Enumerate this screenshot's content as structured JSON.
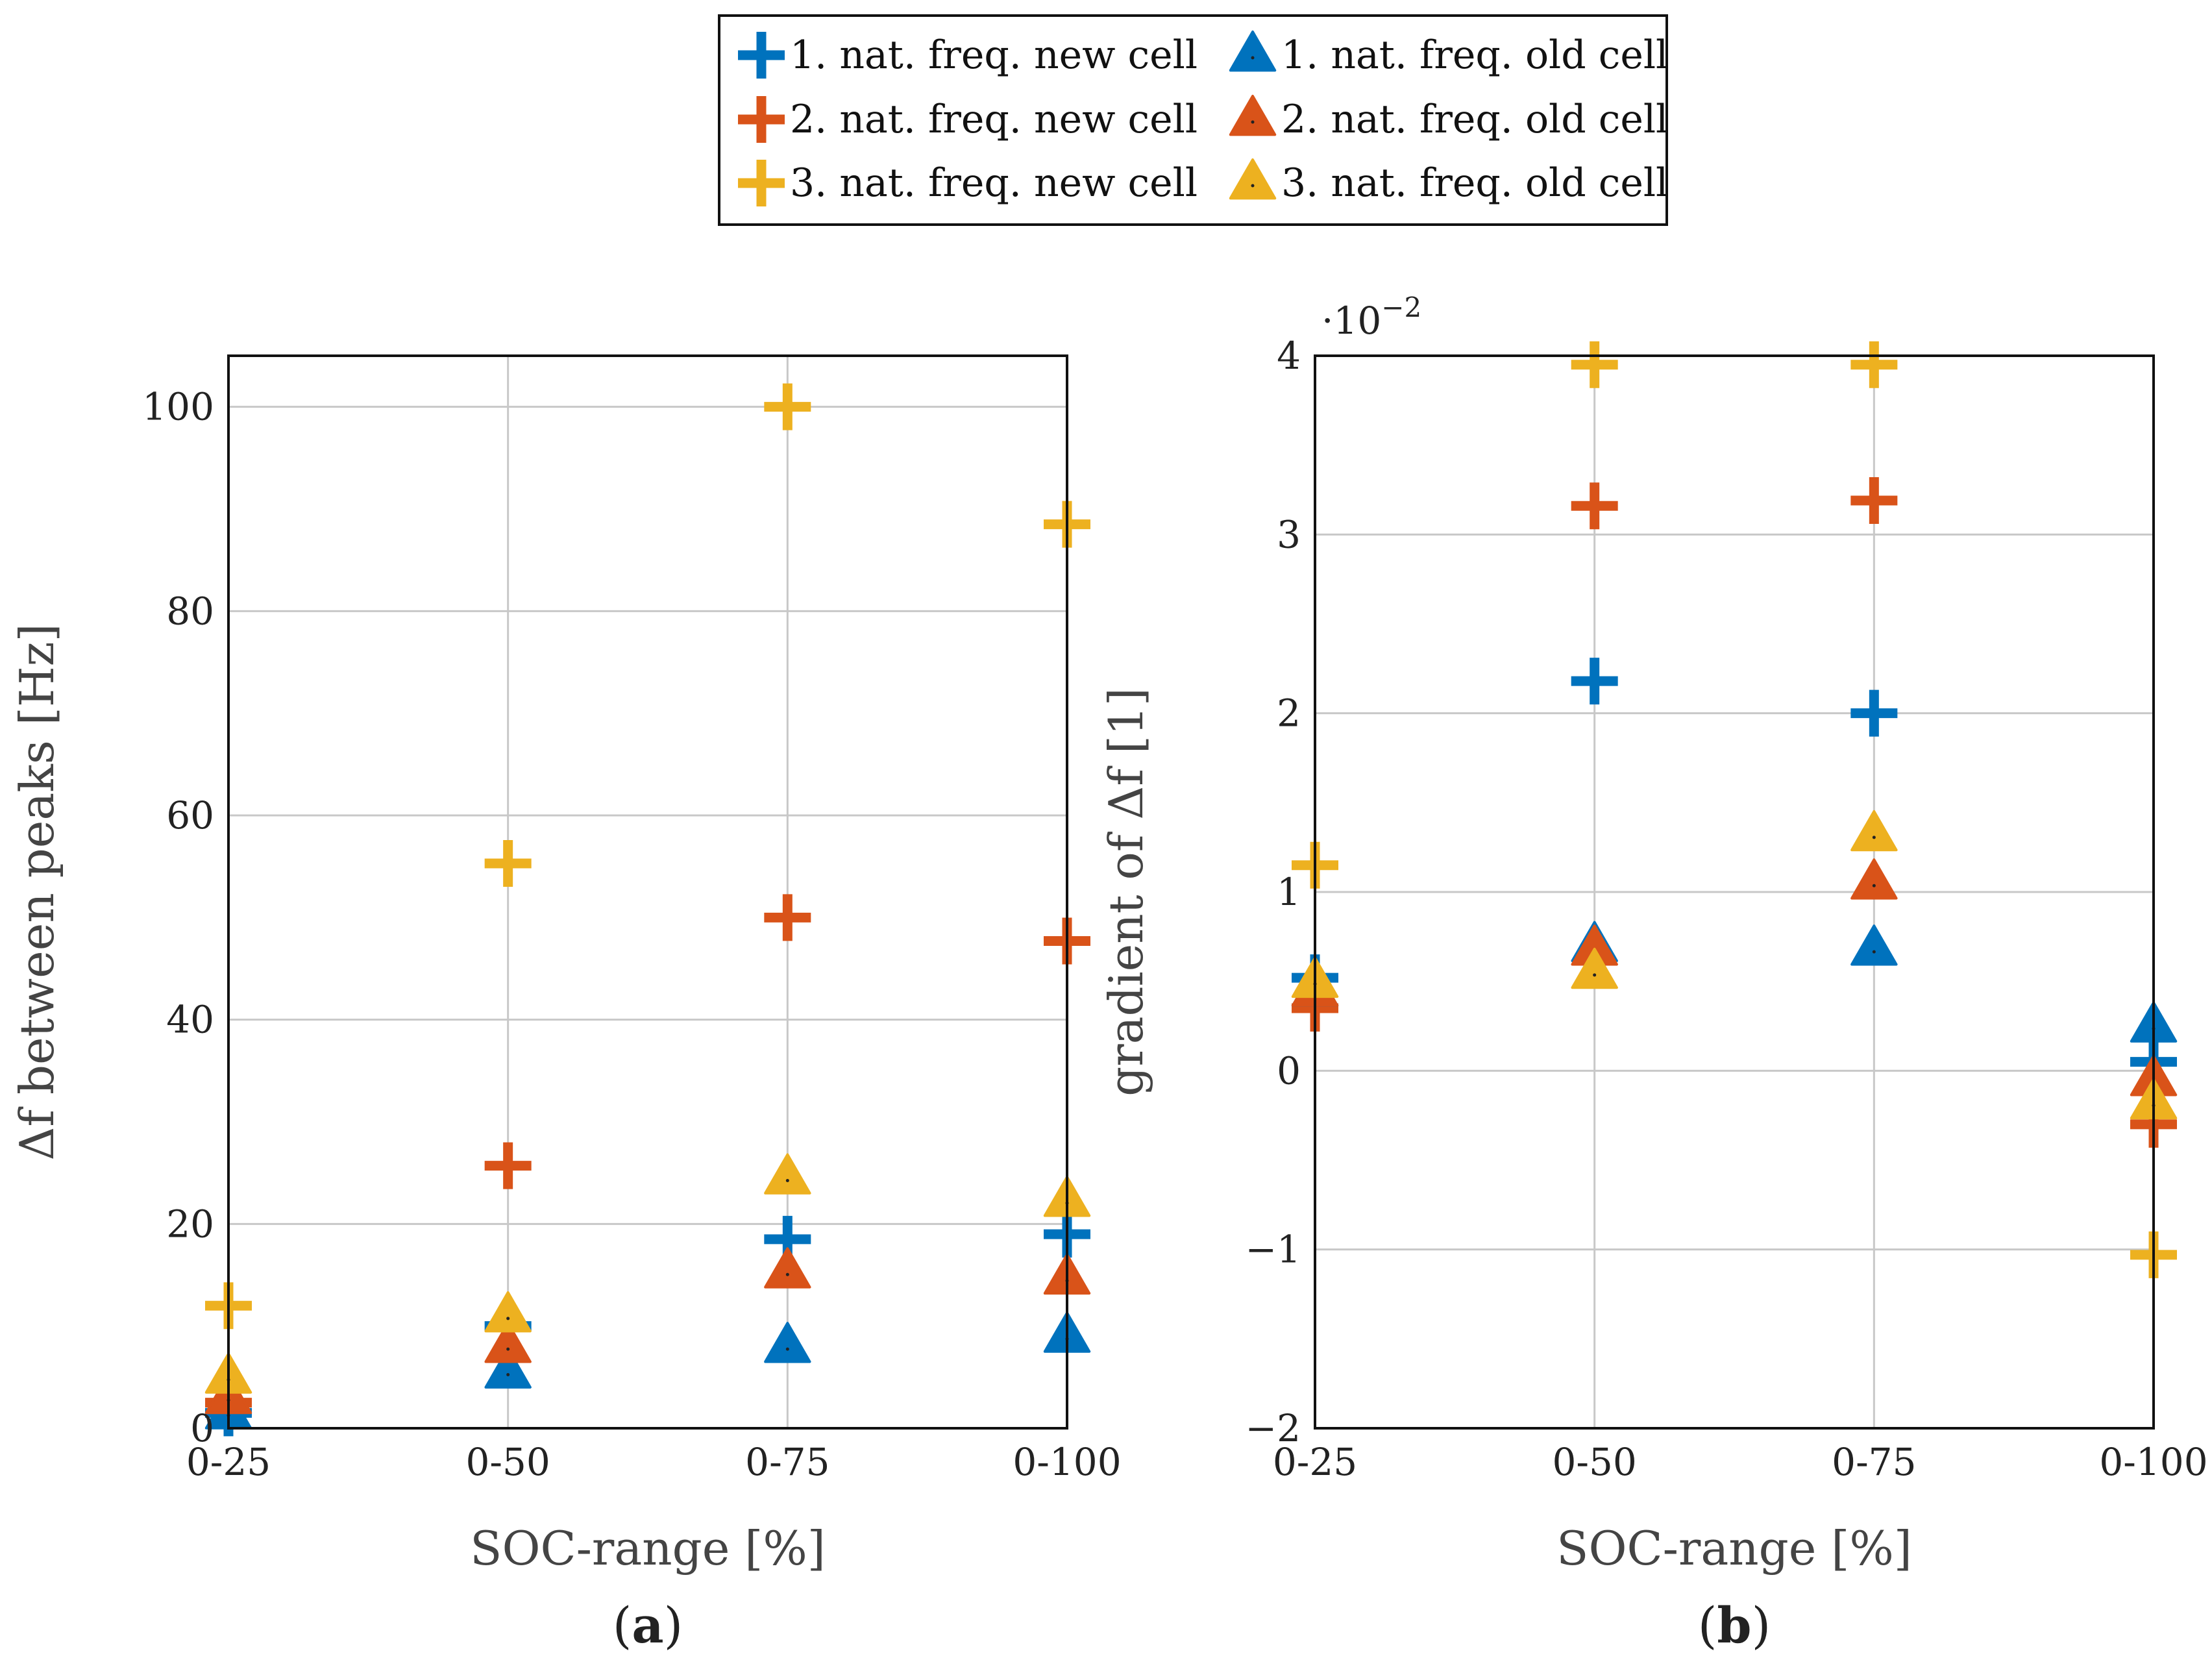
{
  "legend": {
    "columns": [
      [
        {
          "label": "1. nat. freq. new cell",
          "marker": "plus",
          "color": "#0072BD"
        },
        {
          "label": "2. nat. freq. new cell",
          "marker": "plus",
          "color": "#D95319"
        },
        {
          "label": "3. nat. freq. new cell",
          "marker": "plus",
          "color": "#EDB120"
        }
      ],
      [
        {
          "label": "1. nat. freq. old cell",
          "marker": "triangle",
          "color": "#0072BD"
        },
        {
          "label": "2. nat. freq. old cell",
          "marker": "triangle",
          "color": "#D95319"
        },
        {
          "label": "3. nat. freq. old cell",
          "marker": "triangle",
          "color": "#EDB120"
        }
      ]
    ]
  },
  "chart_data": [
    {
      "type": "scatter",
      "caption_letter": "a",
      "categories": [
        "0-25",
        "0-50",
        "0-75",
        "0-100"
      ],
      "xlabel": "SOC-range [%]",
      "ylabel": "Δf between peaks [Hz]",
      "ylim": [
        0,
        105
      ],
      "yticks": [
        0,
        20,
        40,
        60,
        80,
        100
      ],
      "ytick_labels": [
        "0",
        "20",
        "40",
        "60",
        "80",
        "100"
      ],
      "scale_label": "",
      "grid": true,
      "series": [
        {
          "name": "1. nat. freq. new cell",
          "marker": "plus",
          "color": "#0072BD",
          "values": [
            1.5,
            10,
            18.5,
            19
          ]
        },
        {
          "name": "2. nat. freq. new cell",
          "marker": "plus",
          "color": "#D95319",
          "values": [
            2.5,
            25.7,
            50,
            47.7
          ]
        },
        {
          "name": "3. nat. freq. new cell",
          "marker": "plus",
          "color": "#EDB120",
          "values": [
            12,
            55.3,
            100,
            88.5
          ]
        },
        {
          "name": "1. nat. freq. old cell",
          "marker": "triangle",
          "color": "#0072BD",
          "values": [
            1.5,
            5.5,
            8,
            9
          ]
        },
        {
          "name": "2. nat. freq. old cell",
          "marker": "triangle",
          "color": "#D95319",
          "values": [
            3,
            8,
            15.3,
            14.7
          ]
        },
        {
          "name": "3. nat. freq. old cell",
          "marker": "triangle",
          "color": "#EDB120",
          "values": [
            5,
            11,
            24.5,
            22.3
          ]
        }
      ]
    },
    {
      "type": "scatter",
      "caption_letter": "b",
      "categories": [
        "0-25",
        "0-50",
        "0-75",
        "0-100"
      ],
      "xlabel": "SOC-range [%]",
      "ylabel": "gradient of Δf [1]",
      "ylim": [
        -2,
        4
      ],
      "yticks": [
        -2,
        -1,
        0,
        1,
        2,
        3,
        4
      ],
      "ytick_labels": [
        "−2",
        "−1",
        "0",
        "1",
        "2",
        "3",
        "4"
      ],
      "scale_label": "·10",
      "scale_exponent": "−2",
      "grid": true,
      "series": [
        {
          "name": "1. nat. freq. new cell",
          "marker": "plus",
          "color": "#0072BD",
          "values": [
            0.52,
            2.18,
            2.0,
            0.05
          ]
        },
        {
          "name": "2. nat. freq. new cell",
          "marker": "plus",
          "color": "#D95319",
          "values": [
            0.35,
            3.16,
            3.19,
            -0.3
          ]
        },
        {
          "name": "3. nat. freq. new cell",
          "marker": "plus",
          "color": "#EDB120",
          "values": [
            1.15,
            3.95,
            3.95,
            -1.03
          ]
        },
        {
          "name": "1. nat. freq. old cell",
          "marker": "triangle",
          "color": "#0072BD",
          "values": [
            0.45,
            0.7,
            0.68,
            0.25
          ]
        },
        {
          "name": "2. nat. freq. old cell",
          "marker": "triangle",
          "color": "#D95319",
          "values": [
            0.45,
            0.68,
            1.05,
            -0.05
          ]
        },
        {
          "name": "3. nat. freq. old cell",
          "marker": "triangle",
          "color": "#EDB120",
          "values": [
            0.5,
            0.55,
            1.32,
            -0.18
          ]
        }
      ]
    }
  ]
}
